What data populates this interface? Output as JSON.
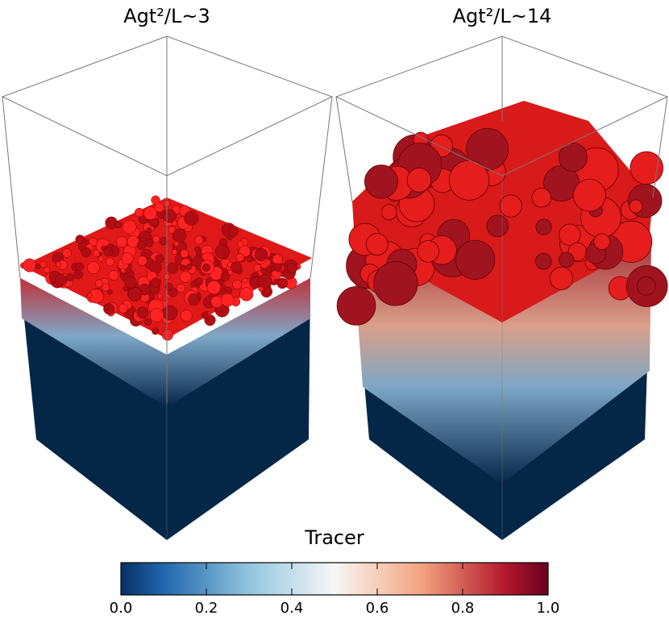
{
  "panels": [
    {
      "title": "Agt²/L~3"
    },
    {
      "title": "Agt²/L~14"
    }
  ],
  "colorbar": {
    "label": "Tracer",
    "lim": [
      0,
      1
    ],
    "ticks": [
      {
        "value": 0,
        "label": "0.0"
      },
      {
        "value": 0.2,
        "label": "0.2"
      },
      {
        "value": 0.4,
        "label": "0.4"
      },
      {
        "value": 0.6,
        "label": "0.6"
      },
      {
        "value": 0.8,
        "label": "0.8"
      },
      {
        "value": 1,
        "label": "1.0"
      }
    ]
  }
}
